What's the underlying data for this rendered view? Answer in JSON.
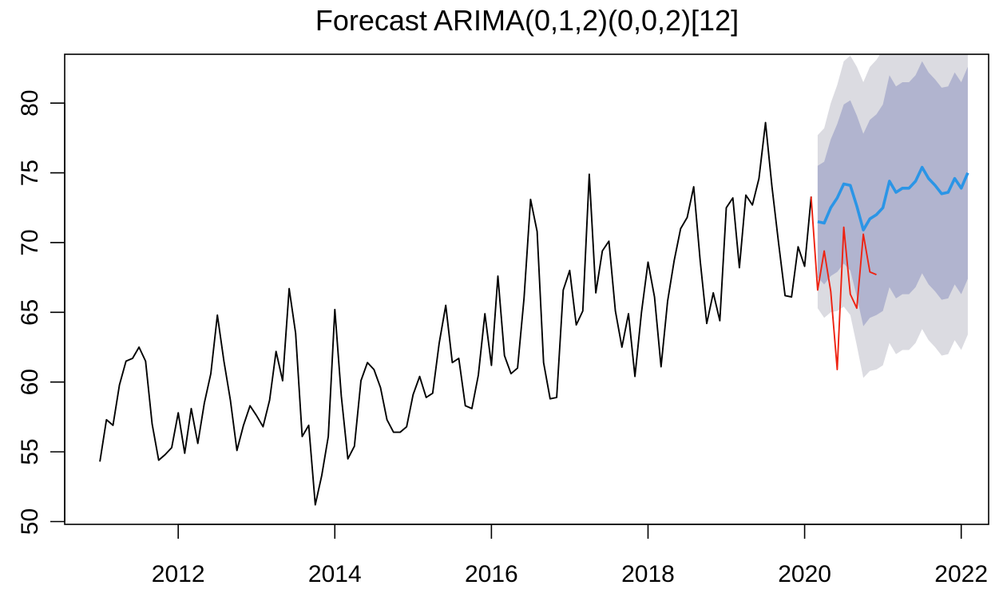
{
  "chart_data": {
    "type": "line",
    "title": "Forecast ARIMA(0,1,2)(0,0,2)[12]",
    "xlabel": "",
    "ylabel": "",
    "xlim": [
      2010.55,
      2022.35
    ],
    "ylim": [
      49.8,
      83.5
    ],
    "x_ticks": [
      2012,
      2014,
      2016,
      2018,
      2020,
      2022
    ],
    "x_tick_labels": [
      "2012",
      "2014",
      "2016",
      "2018",
      "2020",
      "2022"
    ],
    "y_ticks": [
      50,
      55,
      60,
      65,
      70,
      75,
      80
    ],
    "y_tick_labels": [
      "50",
      "55",
      "60",
      "65",
      "70",
      "75",
      "80"
    ],
    "grid": false,
    "legend": "none",
    "colors": {
      "observed": "#000000",
      "actual": "#ee2211",
      "forecast": "#2b95e6",
      "band_95": "#dbdbe1",
      "band_80": "#b1b4cf"
    },
    "series": [
      {
        "role": "observed",
        "start": 2011.0,
        "step": 0.0833333,
        "values": [
          54.3,
          57.3,
          56.9,
          59.8,
          61.5,
          61.7,
          62.5,
          61.5,
          57.0,
          54.4,
          54.8,
          55.3,
          57.8,
          54.9,
          58.1,
          55.6,
          58.5,
          60.6,
          64.8,
          61.5,
          58.7,
          55.1,
          56.9,
          58.3,
          57.6,
          56.8,
          58.7,
          62.2,
          60.1,
          66.7,
          63.5,
          56.1,
          56.9,
          51.2,
          53.3,
          56.1,
          65.2,
          59.0,
          54.5,
          55.4,
          60.1,
          61.4,
          60.9,
          59.6,
          57.3,
          56.4,
          56.4,
          56.8,
          59.1,
          60.4,
          58.9,
          59.2,
          62.8,
          65.5,
          61.4,
          61.7,
          58.3,
          58.1,
          60.5,
          64.9,
          61.2,
          67.6,
          61.9,
          60.6,
          61.0,
          66.0,
          73.1,
          70.8,
          61.4,
          58.8,
          58.9,
          66.6,
          68.0,
          64.1,
          65.1,
          74.9,
          66.4,
          69.4,
          70.1,
          65.1,
          62.5,
          64.9,
          60.4,
          65.0,
          68.6,
          66.1,
          61.1,
          65.8,
          68.7,
          71.0,
          71.8,
          74.0,
          68.7,
          64.2,
          66.4,
          64.4,
          72.5,
          73.2,
          68.2,
          73.4,
          72.7,
          74.6,
          78.6,
          74.0,
          70.0,
          66.2,
          66.1,
          69.7,
          68.3,
          73.3
        ]
      },
      {
        "role": "actual",
        "start": 2020.0833,
        "step": 0.0833333,
        "values": [
          73.3,
          66.6,
          69.4,
          66.5,
          60.9,
          71.1,
          66.3,
          65.3,
          70.6,
          67.9,
          67.7
        ]
      },
      {
        "role": "forecast",
        "start": 2020.1667,
        "step": 0.0833333,
        "values": [
          71.5,
          71.4,
          72.5,
          73.2,
          74.2,
          74.1,
          72.6,
          70.9,
          71.7,
          72.0,
          72.5,
          74.4,
          73.6,
          73.9,
          73.9,
          74.4,
          75.4,
          74.6,
          74.1,
          73.5,
          73.6,
          74.6,
          73.9,
          75.0
        ],
        "lo80": [
          67.5,
          67.0,
          67.6,
          67.9,
          68.5,
          68.0,
          66.1,
          64.0,
          64.6,
          64.8,
          65.1,
          66.8,
          66.0,
          66.3,
          66.3,
          66.8,
          67.8,
          67.0,
          66.5,
          65.9,
          66.0,
          67.0,
          66.3,
          67.4
        ],
        "hi80": [
          75.5,
          75.8,
          77.4,
          78.5,
          79.9,
          80.2,
          79.1,
          77.8,
          78.8,
          79.2,
          79.9,
          82.0,
          81.2,
          81.5,
          81.5,
          82.0,
          83.0,
          82.2,
          81.7,
          81.1,
          81.2,
          82.2,
          81.5,
          82.6
        ],
        "lo95": [
          65.3,
          64.6,
          65.0,
          65.1,
          65.4,
          64.8,
          62.6,
          60.3,
          60.8,
          60.9,
          61.2,
          62.8,
          62.0,
          62.3,
          62.3,
          62.8,
          63.8,
          63.0,
          62.5,
          61.9,
          62.0,
          63.0,
          62.3,
          63.4
        ],
        "hi95": [
          77.7,
          78.2,
          80.0,
          81.3,
          83.0,
          83.4,
          82.6,
          81.5,
          82.6,
          83.1,
          83.8,
          86.0,
          85.2,
          85.5,
          85.5,
          86.0,
          87.0,
          86.2,
          85.7,
          85.1,
          85.2,
          86.2,
          85.5,
          86.6
        ]
      }
    ]
  }
}
